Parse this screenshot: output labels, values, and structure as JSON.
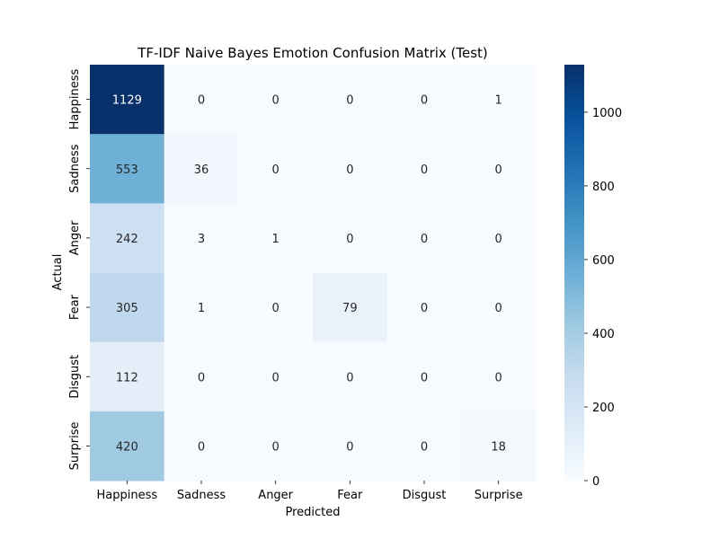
{
  "chart_data": {
    "type": "heatmap",
    "title": "TF-IDF Naive Bayes Emotion Confusion Matrix (Test)",
    "xlabel": "Predicted",
    "ylabel": "Actual",
    "x_categories": [
      "Happiness",
      "Sadness",
      "Anger",
      "Fear",
      "Disgust",
      "Surprise"
    ],
    "y_categories": [
      "Happiness",
      "Sadness",
      "Anger",
      "Fear",
      "Disgust",
      "Surprise"
    ],
    "matrix": [
      [
        1129,
        0,
        0,
        0,
        0,
        1
      ],
      [
        553,
        36,
        0,
        0,
        0,
        0
      ],
      [
        242,
        3,
        1,
        0,
        0,
        0
      ],
      [
        305,
        1,
        0,
        79,
        0,
        0
      ],
      [
        112,
        0,
        0,
        0,
        0,
        0
      ],
      [
        420,
        0,
        0,
        0,
        0,
        18
      ]
    ],
    "value_range": [
      0,
      1129
    ],
    "colorbar_ticks": [
      0,
      200,
      400,
      600,
      800,
      1000
    ],
    "colormap": "Blues",
    "annotations": true
  }
}
